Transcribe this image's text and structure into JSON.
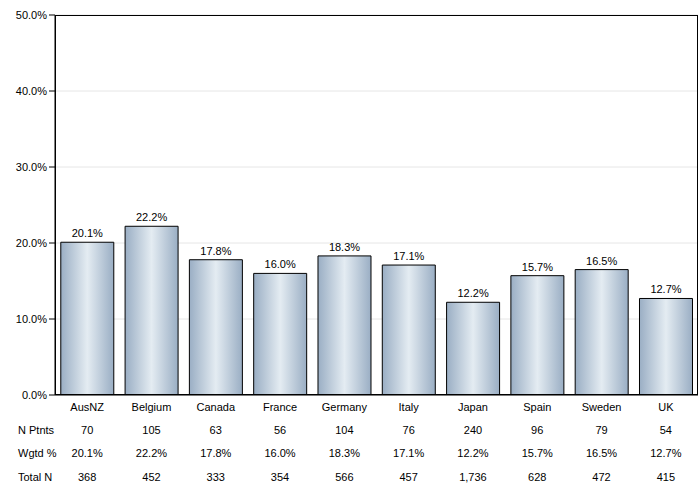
{
  "chart_data": {
    "type": "bar",
    "categories": [
      "AusNZ",
      "Belgium",
      "Canada",
      "France",
      "Germany",
      "Italy",
      "Japan",
      "Spain",
      "Sweden",
      "UK"
    ],
    "values": [
      20.1,
      22.2,
      17.8,
      16.0,
      18.3,
      17.1,
      12.2,
      15.7,
      16.5,
      12.7
    ],
    "value_labels": [
      "20.1%",
      "22.2%",
      "17.8%",
      "16.0%",
      "18.3%",
      "17.1%",
      "12.2%",
      "15.7%",
      "16.5%",
      "12.7%"
    ],
    "data_labels": true,
    "color": "#9aaec4",
    "ylim": [
      0,
      50
    ],
    "yticks": [
      {
        "value": 0,
        "label": "0.0%"
      },
      {
        "value": 10,
        "label": "10.0%"
      },
      {
        "value": 20,
        "label": "20.0%"
      },
      {
        "value": 30,
        "label": "30.0%"
      },
      {
        "value": 40,
        "label": "40.0%"
      },
      {
        "value": 50,
        "label": "50.0%"
      }
    ],
    "grid": true,
    "table": {
      "rows": [
        {
          "label": "N Ptnts",
          "values": [
            "70",
            "105",
            "63",
            "56",
            "104",
            "76",
            "240",
            "96",
            "79",
            "54"
          ]
        },
        {
          "label": "Wgtd %",
          "values": [
            "20.1%",
            "22.2%",
            "17.8%",
            "16.0%",
            "18.3%",
            "17.1%",
            "12.2%",
            "15.7%",
            "16.5%",
            "12.7%"
          ]
        },
        {
          "label": "Total N",
          "values": [
            "368",
            "452",
            "333",
            "354",
            "566",
            "457",
            "1,736",
            "628",
            "472",
            "415"
          ]
        }
      ]
    }
  }
}
